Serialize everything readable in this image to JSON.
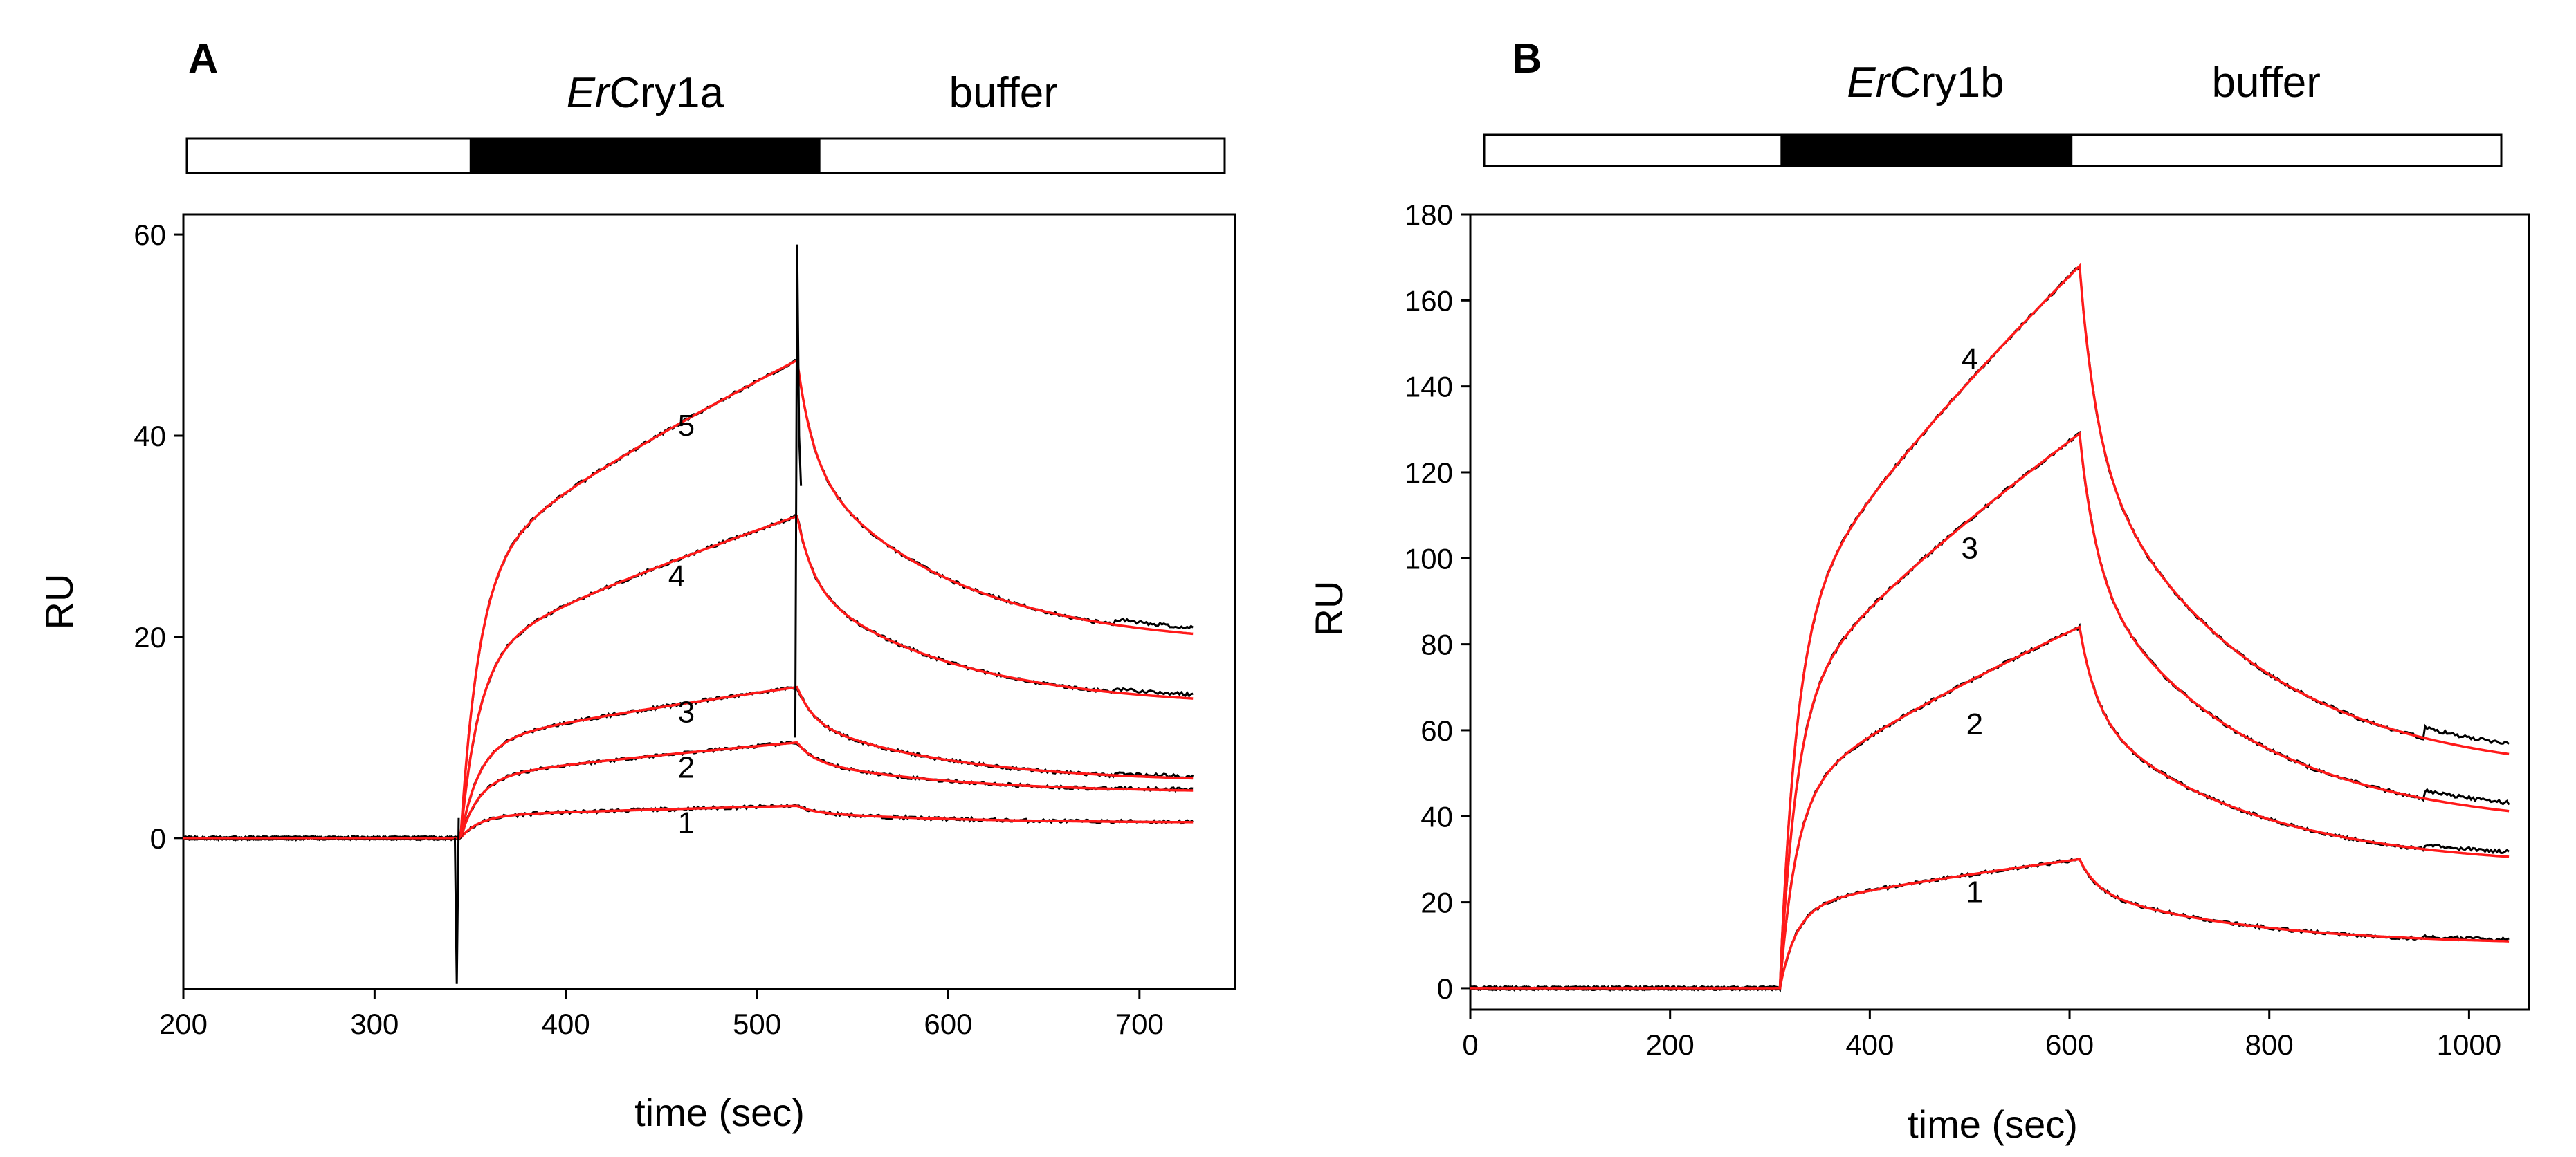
{
  "chart_data": [
    {
      "type": "line",
      "panel": "A",
      "xlabel": "time (sec)",
      "ylabel": "RU",
      "xlim": [
        200,
        750
      ],
      "ylim": [
        -15,
        62
      ],
      "x_ticks": [
        200,
        300,
        400,
        500,
        600,
        700
      ],
      "y_ticks": [
        0,
        20,
        40,
        60
      ],
      "phase_bar": {
        "segments": [
          {
            "start": 200,
            "end": 345,
            "fill": "white"
          },
          {
            "start": 345,
            "end": 523,
            "fill": "black"
          },
          {
            "start": 523,
            "end": 730,
            "fill": "white"
          }
        ],
        "labels": [
          {
            "italic": "Er",
            "text": "Cry1a",
            "at": 434
          },
          {
            "italic": "",
            "text": "buffer",
            "at": 617
          }
        ]
      },
      "injection_start": 345,
      "injection_end": 521,
      "x_end": 728,
      "colors": {
        "data": "#000000",
        "fit": "#ff1a1a"
      },
      "series": [
        {
          "name": "1",
          "label": "1",
          "label_at": [
            463,
            0.5
          ],
          "peak": 3.2,
          "end": 1.5,
          "assoc_shape": 0.5
        },
        {
          "name": "2",
          "label": "2",
          "label_at": [
            463,
            6
          ],
          "peak": 9.5,
          "end": 4.5,
          "assoc_shape": 0.4
        },
        {
          "name": "3",
          "label": "3",
          "label_at": [
            463,
            11.5
          ],
          "peak": 15,
          "end": 5.5,
          "assoc_shape": 0.4
        },
        {
          "name": "4",
          "label": "4",
          "label_at": [
            458,
            25
          ],
          "peak": 32,
          "end": 13,
          "assoc_shape": 0.3
        },
        {
          "name": "5",
          "label": "5",
          "label_at": [
            463,
            40
          ],
          "peak": 47.5,
          "end": 19,
          "assoc_shape": 0.3
        }
      ]
    },
    {
      "type": "line",
      "panel": "B",
      "xlabel": "time (sec)",
      "ylabel": "RU",
      "xlim": [
        0,
        1060
      ],
      "ylim": [
        -5,
        180
      ],
      "x_ticks": [
        0,
        200,
        400,
        600,
        800,
        1000
      ],
      "y_ticks": [
        0,
        20,
        40,
        60,
        80,
        100,
        120,
        140,
        160,
        180
      ],
      "phase_bar": {
        "segments": [
          {
            "start": 0,
            "end": 310,
            "fill": "white"
          },
          {
            "start": 310,
            "end": 612,
            "fill": "black"
          },
          {
            "start": 612,
            "end": 1060,
            "fill": "white"
          }
        ],
        "labels": [
          {
            "italic": "Er",
            "text": "Cry1b",
            "at": 460
          },
          {
            "italic": "",
            "text": "buffer",
            "at": 815
          }
        ]
      },
      "injection_start": 310,
      "injection_end": 610,
      "x_end": 1040,
      "colors": {
        "data": "#000000",
        "fit": "#ff1a1a"
      },
      "series": [
        {
          "name": "1",
          "label": "1",
          "label_at": [
            505,
            20
          ],
          "peak": 30,
          "end": 10,
          "assoc_shape": 0.4
        },
        {
          "name": "2",
          "label": "2",
          "label_at": [
            505,
            59
          ],
          "peak": 84,
          "end": 28,
          "assoc_shape": 0.25
        },
        {
          "name": "3",
          "label": "3",
          "label_at": [
            500,
            100
          ],
          "peak": 129,
          "end": 37,
          "assoc_shape": 0.22
        },
        {
          "name": "4",
          "label": "4",
          "label_at": [
            500,
            144
          ],
          "peak": 168,
          "end": 49,
          "assoc_shape": 0.2
        }
      ]
    }
  ]
}
